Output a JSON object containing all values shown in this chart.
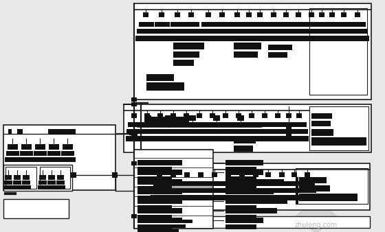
{
  "bg_color": "#e8e8e8",
  "lc": "#1a1a1a",
  "fc": "#111111",
  "wc": "#c8c8c8",
  "fig_w": 5.6,
  "fig_h": 3.38,
  "dpi": 100
}
